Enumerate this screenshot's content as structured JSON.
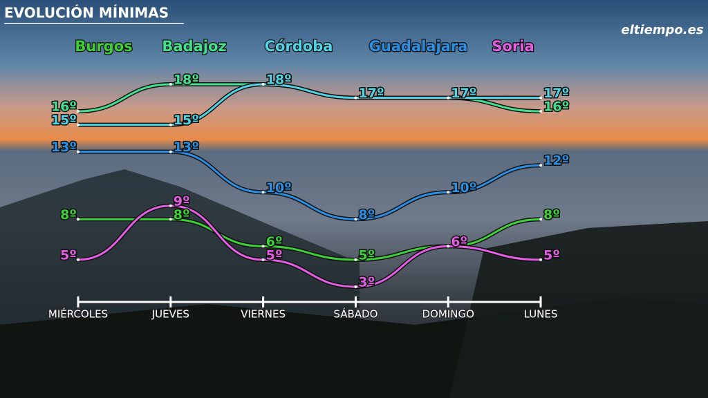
{
  "title": "EVOLUCIÓN MÍNIMAS",
  "logo": "eltiempo.es",
  "chart_data": {
    "type": "line",
    "categories": [
      "MIÉRCOLES",
      "JUEVES",
      "VIERNES",
      "SÁBADO",
      "DOMINGO",
      "LUNES"
    ],
    "series": [
      {
        "name": "Burgos",
        "color": "#3fcf3a",
        "values": [
          8,
          8,
          6,
          5,
          6,
          8
        ],
        "value_labels": [
          "8º",
          "8º",
          "6º",
          "5º",
          "6º",
          "8º"
        ]
      },
      {
        "name": "Badajoz",
        "color": "#44e08e",
        "values": [
          16,
          18,
          18,
          17,
          17,
          16
        ],
        "value_labels": [
          "16º",
          "18º",
          "18º",
          "17º",
          "17º",
          "16º"
        ]
      },
      {
        "name": "Córdoba",
        "color": "#52d3e3",
        "values": [
          15,
          15,
          18,
          17,
          17,
          17
        ],
        "value_labels": [
          "15º",
          "15º",
          "18º",
          "17º",
          "17º",
          "17º"
        ]
      },
      {
        "name": "Guadalajara",
        "color": "#2b8fe3",
        "values": [
          13,
          13,
          10,
          8,
          10,
          12
        ],
        "value_labels": [
          "13º",
          "13º",
          "10º",
          "8º",
          "10º",
          "12º"
        ]
      },
      {
        "name": "Soria",
        "color": "#e35ee3",
        "values": [
          5,
          9,
          5,
          3,
          6,
          5
        ],
        "value_labels": [
          "5º",
          "9º",
          "5º",
          "3º",
          "6º",
          "5º"
        ]
      }
    ]
  }
}
